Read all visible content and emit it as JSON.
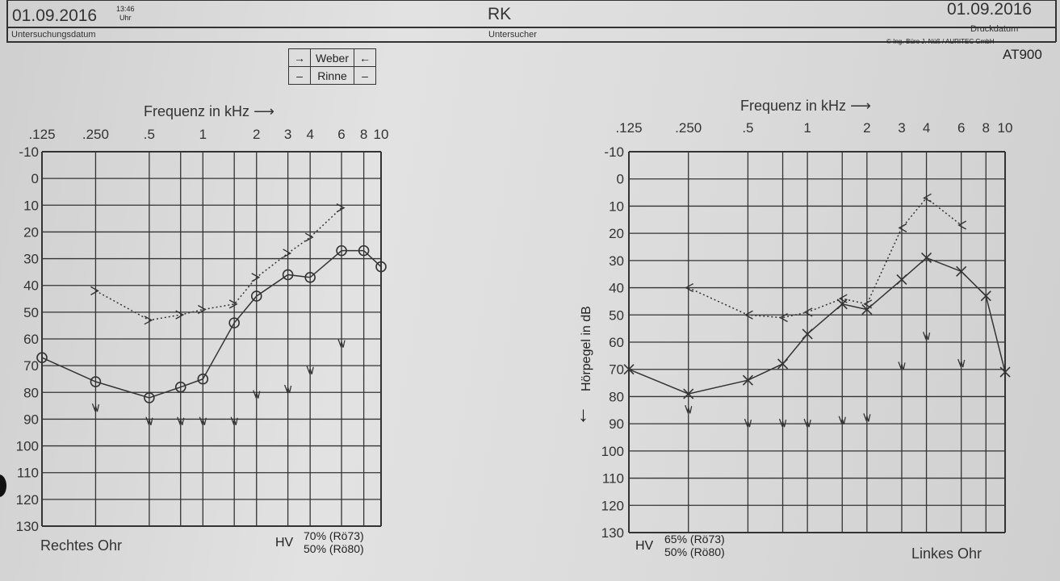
{
  "header": {
    "exam_date": "01.09.2016",
    "exam_time": "13:46",
    "time_unit": "Uhr",
    "exam_date_label": "Untersuchungsdatum",
    "examiner": "RK",
    "examiner_label": "Untersucher",
    "print_date": "01.09.2016",
    "print_date_label": "Druckdatum",
    "copyright": "© Ing.-Büro J. Nüß / AURITEC GmbH",
    "device": "AT900"
  },
  "legend_table": {
    "weber": "Weber",
    "rinne": "Rinne",
    "weber_left": "→",
    "weber_right": "←",
    "rinne_left": "–",
    "rinne_right": "–"
  },
  "chart_data": [
    {
      "type": "line",
      "title": "Rechtes Ohr",
      "xlabel": "Frequenz in kHz",
      "ylabel": "Hörpegel in dB",
      "x_ticks": [
        ".125",
        ".250",
        ".5",
        "1",
        "2",
        "3",
        "4",
        "6",
        "8",
        "10"
      ],
      "x_tick_values": [
        0.125,
        0.25,
        0.5,
        1,
        2,
        3,
        4,
        6,
        8,
        10
      ],
      "grid_x": [
        0.125,
        0.25,
        0.5,
        0.75,
        1,
        1.5,
        2,
        3,
        4,
        6,
        8,
        10
      ],
      "y_ticks": [
        -10,
        0,
        10,
        20,
        30,
        40,
        50,
        60,
        70,
        80,
        90,
        100,
        110,
        120,
        130
      ],
      "ylim": [
        -10,
        130
      ],
      "y_inverted": true,
      "grid": true,
      "hv_label": "HV",
      "hv_lines": [
        "70% (Rö73)",
        "50% (Rö80)"
      ],
      "series": [
        {
          "name": "Luftleitung",
          "marker": "circle",
          "style": "solid",
          "x": [
            0.125,
            0.25,
            0.5,
            0.75,
            1,
            1.5,
            2,
            3,
            4,
            6,
            8,
            10
          ],
          "y": [
            67,
            76,
            82,
            78,
            75,
            54,
            44,
            36,
            37,
            27,
            27,
            33
          ]
        },
        {
          "name": "Knochenleitung",
          "marker": "gt",
          "style": "dotted",
          "x": [
            0.25,
            0.5,
            0.75,
            1,
            1.5,
            2,
            3,
            4,
            6
          ],
          "y": [
            42,
            53,
            51,
            49,
            47,
            37,
            28,
            22,
            11
          ]
        },
        {
          "name": "Markierung",
          "marker": "squiggle",
          "style": "none",
          "x": [
            0.25,
            0.5,
            0.75,
            1,
            1.5,
            2,
            3,
            4,
            6
          ],
          "y": [
            86,
            91,
            91,
            91,
            91,
            81,
            79,
            72,
            62
          ]
        }
      ]
    },
    {
      "type": "line",
      "title": "Linkes Ohr",
      "xlabel": "Frequenz in kHz",
      "ylabel": "Hörpegel in dB",
      "x_ticks": [
        ".125",
        ".250",
        ".5",
        "1",
        "2",
        "3",
        "4",
        "6",
        "8",
        "10"
      ],
      "x_tick_values": [
        0.125,
        0.25,
        0.5,
        1,
        2,
        3,
        4,
        6,
        8,
        10
      ],
      "grid_x": [
        0.125,
        0.25,
        0.5,
        0.75,
        1,
        1.5,
        2,
        3,
        4,
        6,
        8,
        10
      ],
      "y_ticks": [
        -10,
        0,
        10,
        20,
        30,
        40,
        50,
        60,
        70,
        80,
        90,
        100,
        110,
        120,
        130
      ],
      "ylim": [
        -10,
        130
      ],
      "y_inverted": true,
      "grid": true,
      "hv_label": "HV",
      "hv_lines": [
        "65% (Rö73)",
        "50% (Rö80)"
      ],
      "series": [
        {
          "name": "Luftleitung",
          "marker": "x",
          "style": "solid",
          "x": [
            0.125,
            0.25,
            0.5,
            0.75,
            1,
            1.5,
            2,
            3,
            4,
            6,
            8,
            10
          ],
          "y": [
            70,
            79,
            74,
            68,
            57,
            46,
            48,
            37,
            29,
            34,
            43,
            71
          ]
        },
        {
          "name": "Knochenleitung",
          "marker": "lt",
          "style": "dotted",
          "x": [
            0.25,
            0.5,
            0.75,
            1,
            1.5,
            2,
            3,
            4,
            6
          ],
          "y": [
            40,
            50,
            51,
            49,
            44,
            46,
            18,
            7,
            17
          ]
        },
        {
          "name": "Markierung",
          "marker": "squiggle",
          "style": "none",
          "x": [
            0.25,
            0.5,
            0.75,
            1,
            1.5,
            2,
            3,
            4,
            6
          ],
          "y": [
            85,
            90,
            90,
            90,
            89,
            88,
            69,
            58,
            68
          ]
        }
      ]
    }
  ]
}
